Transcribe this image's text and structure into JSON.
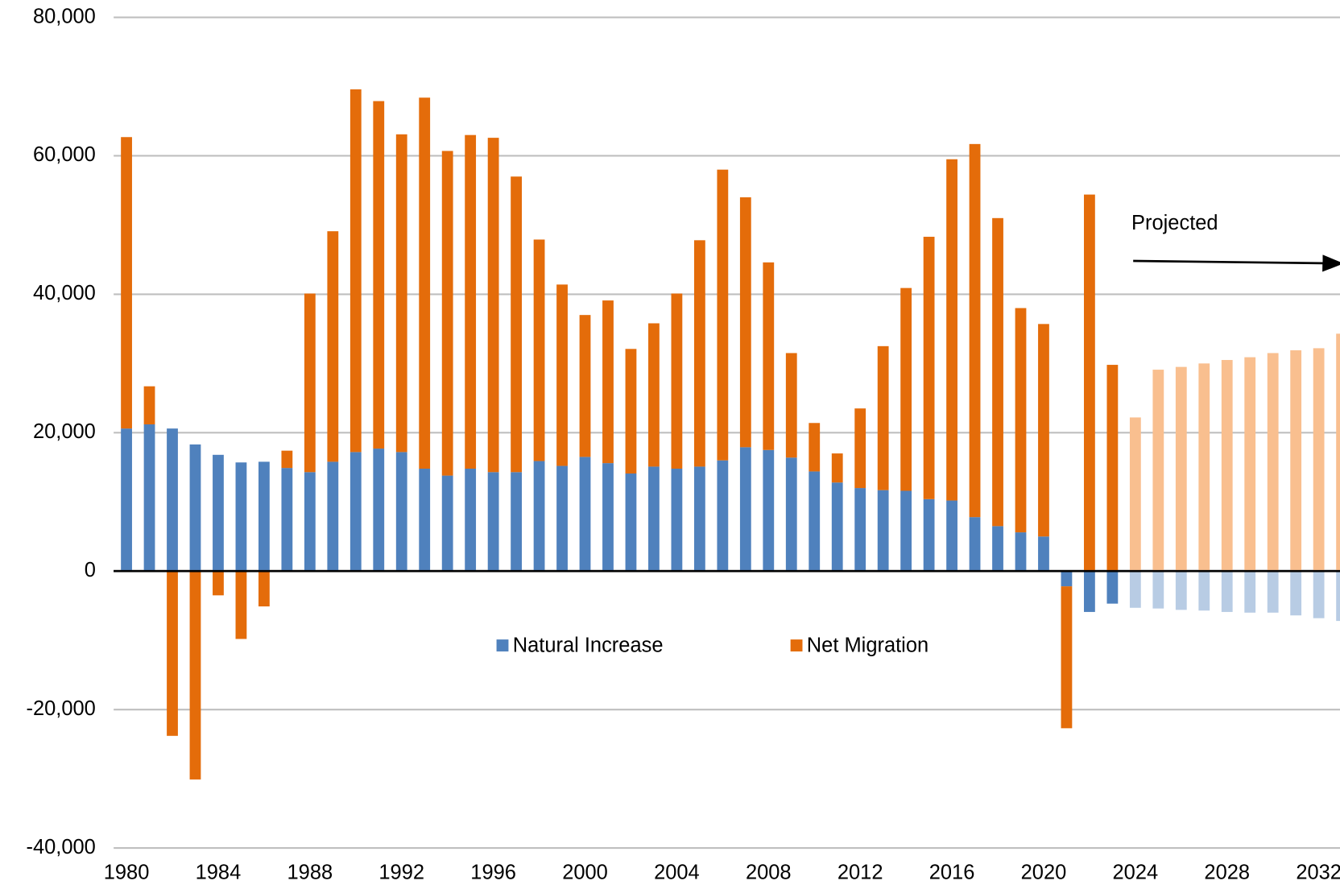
{
  "chart_data": {
    "type": "bar",
    "stacked": true,
    "x": [
      1980,
      1981,
      1982,
      1983,
      1984,
      1985,
      1986,
      1987,
      1988,
      1989,
      1990,
      1991,
      1992,
      1993,
      1994,
      1995,
      1996,
      1997,
      1998,
      1999,
      2000,
      2001,
      2002,
      2003,
      2004,
      2005,
      2006,
      2007,
      2008,
      2009,
      2010,
      2011,
      2012,
      2013,
      2014,
      2015,
      2016,
      2017,
      2018,
      2019,
      2020,
      2021,
      2022,
      2023,
      2024,
      2025,
      2026,
      2027,
      2028,
      2029,
      2030,
      2031,
      2032,
      2033
    ],
    "projected_from": 2024,
    "series": [
      {
        "name": "Natural Increase",
        "color": "#4f81bd",
        "projected_color": "#b8cce4",
        "values": [
          20600,
          21200,
          20600,
          18300,
          16800,
          15700,
          15800,
          14900,
          14300,
          15800,
          17200,
          17700,
          17200,
          14800,
          13800,
          14800,
          14300,
          14300,
          15900,
          15200,
          16500,
          15600,
          14100,
          15100,
          14800,
          15100,
          16000,
          17900,
          17500,
          16400,
          14400,
          12800,
          12000,
          11700,
          11600,
          10400,
          10200,
          7800,
          6500,
          5600,
          5000,
          -2200,
          -5900,
          -4700,
          -5300,
          -5400,
          -5600,
          -5700,
          -5900,
          -6000,
          -6000,
          -6400,
          -6800,
          -7200
        ]
      },
      {
        "name": "Net Migration",
        "color": "#e46c0a",
        "projected_color": "#f9bf8f",
        "values": [
          42100,
          5500,
          -23800,
          -30100,
          -3500,
          -9800,
          -5100,
          2500,
          25800,
          33300,
          52400,
          50200,
          45900,
          53600,
          46900,
          48200,
          48300,
          42700,
          32000,
          26200,
          20500,
          23500,
          18000,
          20700,
          25300,
          32700,
          42000,
          36100,
          27100,
          15100,
          7000,
          4200,
          11500,
          20800,
          29300,
          37900,
          49300,
          53900,
          44500,
          32400,
          30700,
          -20500,
          54400,
          29800,
          22200,
          29100,
          29500,
          30000,
          30500,
          30900,
          31500,
          31900,
          32200,
          34300
        ]
      }
    ],
    "ylim": [
      -40000,
      80000
    ],
    "yticks": [
      {
        "value": -40000,
        "label": "-40,000"
      },
      {
        "value": -20000,
        "label": "-20,000"
      },
      0,
      {
        "value": 20000,
        "label": "20,000"
      },
      {
        "value": 40000,
        "label": "40,000"
      },
      {
        "value": 60000,
        "label": "60,000"
      },
      {
        "value": 80000,
        "label": "80,000"
      }
    ],
    "xticks": [
      1980,
      1984,
      1988,
      1992,
      1996,
      2000,
      2004,
      2008,
      2012,
      2016,
      2020,
      2024,
      2028,
      2032
    ],
    "grid": true,
    "annotation": "Projected"
  }
}
